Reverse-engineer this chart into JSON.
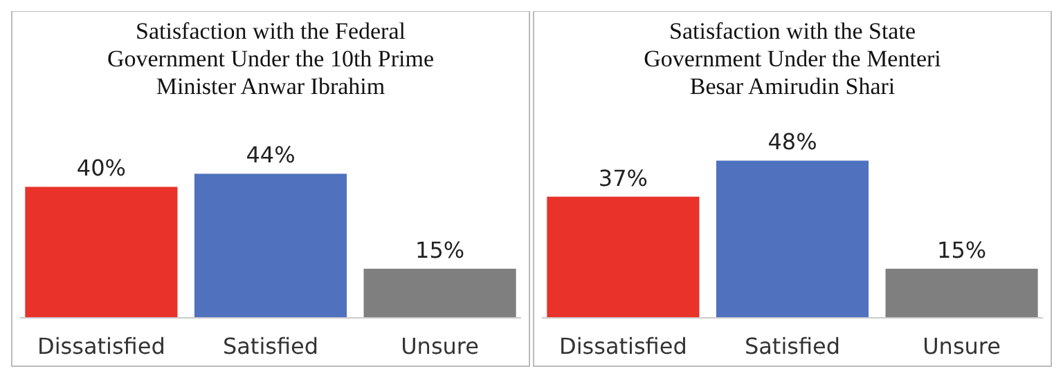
{
  "chart_data": [
    {
      "type": "bar",
      "title": "Satisfaction with the Federal Government Under the 10th Prime Minister Anwar Ibrahim",
      "categories": [
        "Dissatisfied",
        "Satisfied",
        "Unsure"
      ],
      "values": [
        40,
        44,
        15
      ],
      "colors": [
        "#e8322a",
        "#4f71be",
        "#7f7f7f"
      ],
      "value_labels": [
        "40%",
        "44%",
        "15%"
      ]
    },
    {
      "type": "bar",
      "title": "Satisfaction with the State Government Under the Menteri Besar Amirudin Shari",
      "categories": [
        "Dissatisfied",
        "Satisfied",
        "Unsure"
      ],
      "values": [
        37,
        48,
        15
      ],
      "colors": [
        "#e8322a",
        "#4f71be",
        "#7f7f7f"
      ],
      "value_labels": [
        "37%",
        "48%",
        "15%"
      ]
    }
  ]
}
